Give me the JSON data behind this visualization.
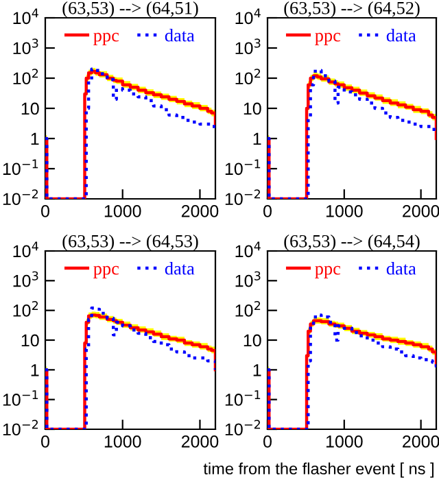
{
  "chart_data": [
    {
      "type": "step",
      "title": "(63,53) --> (64,51)",
      "log": true,
      "legend": "top",
      "grid": false,
      "x": [
        0,
        20,
        490,
        510,
        530,
        560,
        600,
        650,
        700,
        800,
        880,
        920,
        1000,
        1100,
        1200,
        1300,
        1400,
        1500,
        1600,
        1700,
        1800,
        1900,
        2000,
        2100,
        2150,
        2200
      ],
      "xlim": [
        0,
        2200
      ],
      "xticks": [
        0,
        1000,
        2000
      ],
      "ylim": [
        0.01,
        10000
      ],
      "yticks": [
        {
          "value": 0.01,
          "label": "10$^{−2}$"
        },
        {
          "value": 0.1,
          "label": "10$^{−1}$"
        },
        1,
        10,
        {
          "value": 100,
          "label": "10$^{2}$"
        },
        {
          "value": 1000,
          "label": "10$^{3}$"
        },
        {
          "value": 10000,
          "label": "10$^{4}$"
        }
      ],
      "series": [
        {
          "name": "ppc",
          "color": "#ff0000",
          "line_style": "solid",
          "values": [
            1,
            0.01,
            0.01,
            30,
            100,
            150,
            170,
            150,
            130,
            100,
            85,
            80,
            60,
            50,
            40,
            33,
            28,
            24,
            20,
            17,
            14,
            12,
            10,
            8,
            7,
            3
          ],
          "upper": [
            1.3,
            0.01,
            0.01,
            40,
            130,
            190,
            220,
            195,
            170,
            130,
            110,
            105,
            80,
            65,
            52,
            43,
            36,
            31,
            26,
            22,
            18,
            16,
            13,
            10.5,
            9,
            4
          ],
          "lower": [
            0.8,
            0.01,
            0.01,
            24,
            80,
            120,
            135,
            120,
            105,
            80,
            68,
            64,
            48,
            40,
            32,
            26,
            22,
            19,
            16,
            13.5,
            11,
            9.5,
            8,
            6.5,
            5.5,
            2.4
          ]
        },
        {
          "name": "data",
          "color": "#0000ff",
          "line_style": "dotted",
          "values": [
            1,
            0.01,
            0.01,
            0.01,
            10,
            80,
            200,
            180,
            140,
            90,
            20,
            45,
            40,
            30,
            24,
            18,
            12,
            9,
            6,
            5,
            4,
            3.5,
            3,
            3,
            2.5,
            2
          ]
        }
      ]
    },
    {
      "type": "step",
      "title": "(63,53) --> (64,52)",
      "log": true,
      "legend": "top",
      "grid": false,
      "x": [
        0,
        20,
        490,
        510,
        530,
        560,
        600,
        650,
        700,
        800,
        880,
        920,
        1000,
        1100,
        1200,
        1300,
        1400,
        1500,
        1600,
        1700,
        1800,
        1900,
        2000,
        2100,
        2150,
        2200
      ],
      "xlim": [
        0,
        2200
      ],
      "xticks": [
        0,
        1000,
        2000
      ],
      "ylim": [
        0.01,
        10000
      ],
      "yticks": [
        {
          "value": 0.01,
          "label": "10$^{−2}$"
        },
        {
          "value": 0.1,
          "label": "10$^{−1}$"
        },
        1,
        10,
        {
          "value": 100,
          "label": "10$^{2}$"
        },
        {
          "value": 1000,
          "label": "10$^{3}$"
        },
        {
          "value": 10000,
          "label": "10$^{4}$"
        }
      ],
      "series": [
        {
          "name": "ppc",
          "color": "#ff0000",
          "line_style": "solid",
          "values": [
            1,
            0.01,
            0.01,
            10,
            60,
            100,
            120,
            110,
            95,
            75,
            65,
            60,
            48,
            40,
            32,
            26,
            22,
            18,
            15,
            13,
            11,
            9,
            8,
            6,
            5,
            1
          ],
          "upper": [
            1.3,
            0.01,
            0.01,
            13,
            78,
            130,
            156,
            143,
            124,
            98,
            85,
            78,
            62,
            52,
            42,
            34,
            29,
            23,
            20,
            17,
            14,
            12,
            10,
            8,
            6.5,
            1.3
          ],
          "lower": [
            0.8,
            0.01,
            0.01,
            8,
            48,
            80,
            96,
            88,
            76,
            60,
            52,
            48,
            38,
            32,
            26,
            21,
            18,
            14,
            12,
            10,
            9,
            7,
            6.4,
            4.8,
            4,
            0.8
          ]
        },
        {
          "name": "data",
          "color": "#0000ff",
          "line_style": "dotted",
          "values": [
            1,
            0.01,
            0.01,
            0.01,
            5,
            60,
            170,
            180,
            120,
            80,
            15,
            50,
            35,
            28,
            20,
            15,
            10,
            7,
            5,
            4,
            3.5,
            3,
            2.5,
            2.5,
            2,
            1.5
          ]
        }
      ]
    },
    {
      "type": "step",
      "title": "(63,53) --> (64,53)",
      "log": true,
      "legend": "top",
      "grid": false,
      "x": [
        0,
        20,
        490,
        510,
        530,
        560,
        600,
        650,
        700,
        800,
        880,
        920,
        1000,
        1100,
        1200,
        1300,
        1400,
        1500,
        1600,
        1700,
        1800,
        1900,
        2000,
        2100,
        2150,
        2200
      ],
      "xlim": [
        0,
        2200
      ],
      "xticks": [
        0,
        1000,
        2000
      ],
      "ylim": [
        0.01,
        10000
      ],
      "yticks": [
        {
          "value": 0.01,
          "label": "10$^{−2}$"
        },
        {
          "value": 0.1,
          "label": "10$^{−1}$"
        },
        1,
        10,
        {
          "value": 100,
          "label": "10$^{2}$"
        },
        {
          "value": 1000,
          "label": "10$^{3}$"
        },
        {
          "value": 10000,
          "label": "10$^{4}$"
        }
      ],
      "series": [
        {
          "name": "ppc",
          "color": "#ff0000",
          "line_style": "solid",
          "values": [
            1,
            0.01,
            0.01,
            8,
            40,
            65,
            70,
            68,
            60,
            50,
            45,
            40,
            32,
            26,
            22,
            19,
            16,
            13,
            11,
            10,
            8,
            7,
            6,
            5,
            4.5,
            1
          ],
          "upper": [
            1.3,
            0.01,
            0.01,
            10,
            52,
            85,
            91,
            88,
            78,
            65,
            58,
            52,
            42,
            34,
            29,
            25,
            21,
            17,
            14,
            13,
            10,
            9,
            8,
            6.5,
            6,
            1.3
          ],
          "lower": [
            0.8,
            0.01,
            0.01,
            6.4,
            32,
            52,
            56,
            54,
            48,
            40,
            36,
            32,
            26,
            21,
            18,
            15,
            13,
            10,
            9,
            8,
            6.4,
            5.6,
            4.8,
            4,
            3.6,
            0.8
          ]
        },
        {
          "name": "data",
          "color": "#0000ff",
          "line_style": "dotted",
          "values": [
            1,
            0.01,
            0.01,
            0.01,
            5,
            50,
            120,
            110,
            80,
            55,
            15,
            40,
            30,
            22,
            17,
            12,
            9,
            7,
            5,
            4,
            3,
            2.5,
            2.5,
            2,
            2,
            1
          ]
        }
      ]
    },
    {
      "type": "step",
      "title": "(63,53) --> (64,54)",
      "xlabel": "time from the flasher event [ ns ]",
      "log": true,
      "legend": "top",
      "grid": false,
      "x": [
        0,
        20,
        490,
        510,
        530,
        560,
        600,
        650,
        700,
        800,
        880,
        920,
        1000,
        1100,
        1200,
        1300,
        1400,
        1500,
        1600,
        1700,
        1800,
        1900,
        2000,
        2100,
        2150,
        2200
      ],
      "xlim": [
        0,
        2200
      ],
      "xticks": [
        0,
        1000,
        2000
      ],
      "ylim": [
        0.01,
        10000
      ],
      "yticks": [
        {
          "value": 0.01,
          "label": "10$^{−2}$"
        },
        {
          "value": 0.1,
          "label": "10$^{−1}$"
        },
        1,
        10,
        {
          "value": 100,
          "label": "10$^{2}$"
        },
        {
          "value": 1000,
          "label": "10$^{3}$"
        },
        {
          "value": 10000,
          "label": "10$^{4}$"
        }
      ],
      "series": [
        {
          "name": "ppc",
          "color": "#ff0000",
          "line_style": "solid",
          "values": [
            1,
            0.01,
            0.01,
            3,
            20,
            35,
            45,
            45,
            42,
            35,
            32,
            30,
            25,
            20,
            17,
            15,
            13,
            11,
            10,
            9,
            8,
            7,
            6,
            5,
            4,
            1.5
          ],
          "upper": [
            1.3,
            0.01,
            0.01,
            4,
            26,
            45,
            58,
            58,
            55,
            45,
            42,
            39,
            32,
            26,
            22,
            19,
            17,
            14,
            13,
            12,
            10,
            9,
            8,
            6.5,
            5,
            2
          ],
          "lower": [
            0.8,
            0.01,
            0.01,
            2.4,
            16,
            28,
            36,
            36,
            34,
            28,
            26,
            24,
            20,
            16,
            14,
            12,
            10,
            9,
            8,
            7,
            6.4,
            5.6,
            4.8,
            4,
            3.2,
            1.2
          ]
        },
        {
          "name": "data",
          "color": "#0000ff",
          "line_style": "dotted",
          "values": [
            1,
            0.01,
            0.01,
            0.01,
            2,
            30,
            60,
            70,
            60,
            40,
            10,
            30,
            25,
            18,
            14,
            10,
            8,
            6,
            5,
            4,
            3,
            2.5,
            2.2,
            2,
            1.8,
            1.2
          ]
        }
      ]
    }
  ]
}
